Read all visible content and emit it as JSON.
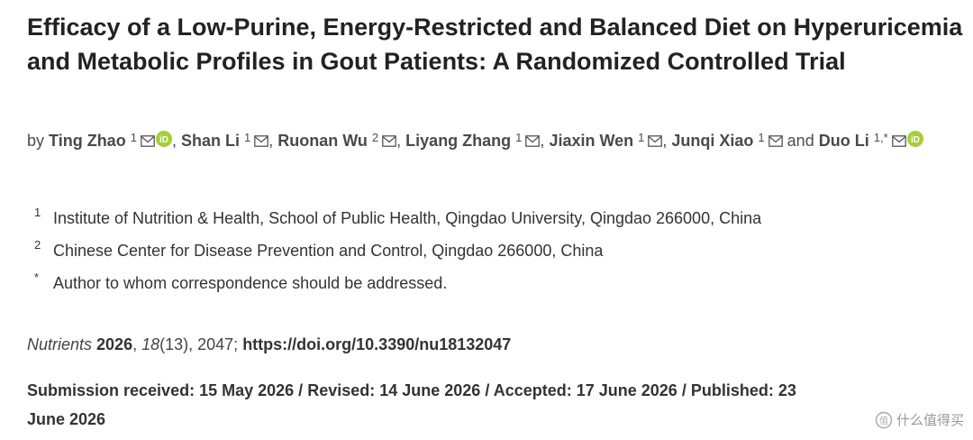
{
  "title": "Efficacy of a Low-Purine, Energy-Restricted and Balanced Diet on Hyperuricemia and Metabolic Profiles in Gout Patients: A Randomized Controlled Trial",
  "authors": {
    "prefix": "by",
    "separator": ",",
    "conjunction": "and",
    "list": [
      {
        "name": "Ting Zhao",
        "sup": "1",
        "orcid": true
      },
      {
        "name": "Shan Li",
        "sup": "1",
        "orcid": false
      },
      {
        "name": "Ruonan Wu",
        "sup": "2",
        "orcid": false
      },
      {
        "name": "Liyang Zhang",
        "sup": "1",
        "orcid": false
      },
      {
        "name": "Jiaxin Wen",
        "sup": "1",
        "orcid": false
      },
      {
        "name": "Junqi Xiao",
        "sup": "1",
        "orcid": false
      },
      {
        "name": "Duo Li",
        "sup": "1,*",
        "orcid": true
      }
    ]
  },
  "affiliations": [
    {
      "mark": "1",
      "text": "Institute of Nutrition & Health, School of Public Health, Qingdao University, Qingdao 266000, China"
    },
    {
      "mark": "2",
      "text": "Chinese Center for Disease Prevention and Control, Qingdao 266000, China"
    },
    {
      "mark": "*",
      "text": "Author to whom correspondence should be addressed."
    }
  ],
  "citation": [
    {
      "text": "Nutrients",
      "style": "italic"
    },
    {
      "text": " 2026",
      "style": "bold"
    },
    {
      "text": ", ",
      "style": "normal"
    },
    {
      "text": "18",
      "style": "italic"
    },
    {
      "text": "(13), 2047; ",
      "style": "normal"
    },
    {
      "text": "https://doi.org/10.3390/nu18132047",
      "style": "bold"
    }
  ],
  "dates": {
    "separator": "/",
    "items": [
      "Submission received: 15 May 2026",
      "Revised: 14 June 2026",
      "Accepted: 17 June 2026",
      "Published: 23 June 2026"
    ]
  },
  "watermark": "什么值得买"
}
